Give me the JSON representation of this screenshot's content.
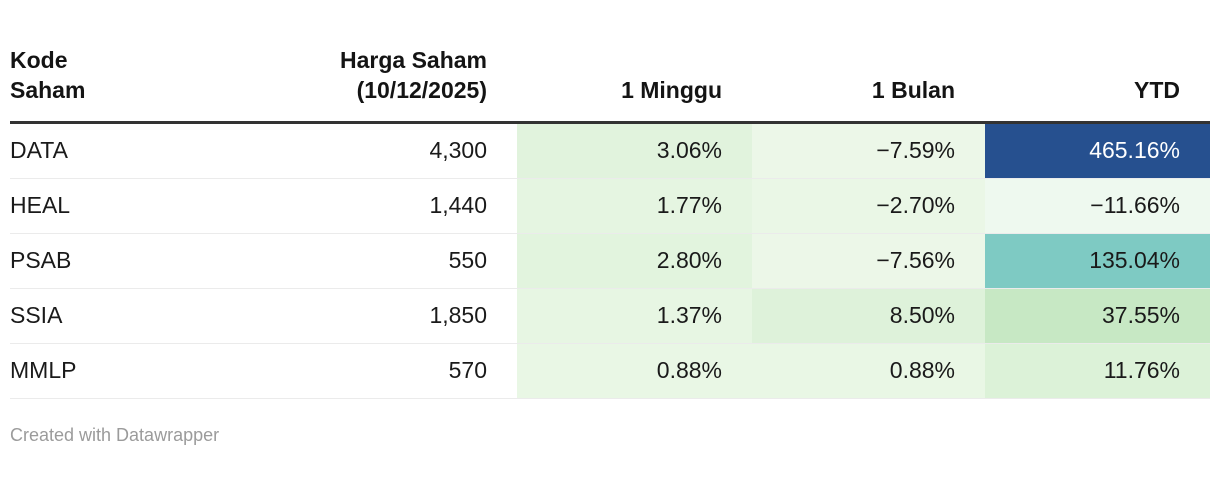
{
  "table": {
    "headers": [
      "Kode\nSaham",
      "Harga Saham\n(10/12/2025)",
      "1 Minggu",
      "1 Bulan",
      "YTD"
    ],
    "rows": [
      {
        "kode": "DATA",
        "harga": "4,300",
        "minggu": {
          "text": "3.06%",
          "bg": "#e1f3dd"
        },
        "bulan": {
          "text": "−7.59%",
          "bg": "#ecf7e8"
        },
        "ytd": {
          "text": "465.16%",
          "bg": "#26508f",
          "fg": "#ffffff"
        }
      },
      {
        "kode": "HEAL",
        "harga": "1,440",
        "minggu": {
          "text": "1.77%",
          "bg": "#e5f5e1"
        },
        "bulan": {
          "text": "−2.70%",
          "bg": "#eaf7e6"
        },
        "ytd": {
          "text": "−11.66%",
          "bg": "#eef9ef"
        }
      },
      {
        "kode": "PSAB",
        "harga": "550",
        "minggu": {
          "text": "2.80%",
          "bg": "#e2f4de"
        },
        "bulan": {
          "text": "−7.56%",
          "bg": "#ecf7e8"
        },
        "ytd": {
          "text": "135.04%",
          "bg": "#7ecac3"
        }
      },
      {
        "kode": "SSIA",
        "harga": "1,850",
        "minggu": {
          "text": "1.37%",
          "bg": "#e7f6e3"
        },
        "bulan": {
          "text": "8.50%",
          "bg": "#def2da"
        },
        "ytd": {
          "text": "37.55%",
          "bg": "#c7e8c4"
        }
      },
      {
        "kode": "MMLP",
        "harga": "570",
        "minggu": {
          "text": "0.88%",
          "bg": "#e9f7e5"
        },
        "bulan": {
          "text": "0.88%",
          "bg": "#e9f7e5"
        },
        "ytd": {
          "text": "11.76%",
          "bg": "#dcf2d8"
        }
      }
    ]
  },
  "footer": {
    "credit": "Created with Datawrapper"
  },
  "colors": {
    "header_rule": "#333333",
    "row_rule": "#ebebeb",
    "heat_strong_positive": "#26508f",
    "heat_teal": "#7ecac3",
    "heat_light_green": "#e1f3dd"
  },
  "chart_data": {
    "type": "table",
    "title": "",
    "columns": [
      "Kode Saham",
      "Harga Saham (10/12/2025)",
      "1 Minggu",
      "1 Bulan",
      "YTD"
    ],
    "rows": [
      [
        "DATA",
        4300,
        3.06,
        -7.59,
        465.16
      ],
      [
        "HEAL",
        1440,
        1.77,
        -2.7,
        -11.66
      ],
      [
        "PSAB",
        550,
        2.8,
        -7.56,
        135.04
      ],
      [
        "SSIA",
        1850,
        1.37,
        8.5,
        37.55
      ],
      [
        "MMLP",
        570,
        0.88,
        0.88,
        11.76
      ]
    ],
    "notes": "Percentage columns (1 Minggu, 1 Bulan, YTD) have a green-to-blue heatmap background; 465.16% is dark blue with white text, 135.04% is teal."
  }
}
